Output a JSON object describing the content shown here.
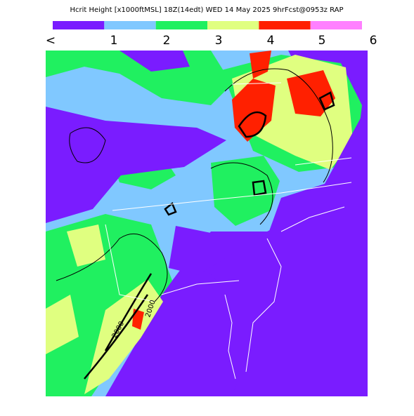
{
  "header": {
    "title": "Hcrit Height [x1000ftMSL] 18Z(14edt) WED 14 May 2025 9hrFcst@0953z RAP"
  },
  "legend": {
    "labels": [
      "<",
      "1",
      "2",
      "3",
      "4",
      "5",
      "6"
    ],
    "colors": [
      "#7a1cff",
      "#80c8ff",
      "#20f060",
      "#e0ff80",
      "#ff2000",
      "#ff80ff"
    ]
  },
  "map": {
    "contour_labels": [
      "2000",
      "2000"
    ]
  }
}
